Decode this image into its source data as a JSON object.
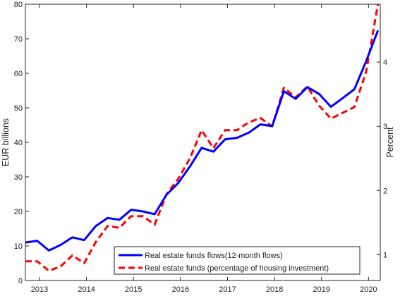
{
  "chart_data": {
    "type": "line",
    "ylabel_left": "EUR billions",
    "ylabel_right": "Percent",
    "xlim": [
      2012.7,
      2020.25
    ],
    "ylim_left": [
      0,
      80
    ],
    "ylim_right": [
      0.6,
      4.9
    ],
    "x_ticks": [
      2013,
      2014,
      2015,
      2016,
      2017,
      2018,
      2019,
      2020
    ],
    "y_ticks_left": [
      0,
      10,
      20,
      30,
      40,
      50,
      60,
      70,
      80
    ],
    "y_ticks_right": [
      1,
      2,
      3,
      4
    ],
    "grid": false,
    "legend_position": "bottom-center",
    "series": [
      {
        "name": "Real estate funds flows(12-month flows)",
        "axis": "left",
        "color": "#0000ff",
        "style": "solid",
        "x": [
          2012.7,
          2012.95,
          2013.2,
          2013.45,
          2013.7,
          2013.95,
          2014.2,
          2014.45,
          2014.7,
          2014.95,
          2015.2,
          2015.45,
          2015.7,
          2015.95,
          2016.2,
          2016.45,
          2016.7,
          2016.95,
          2017.2,
          2017.45,
          2017.7,
          2017.95,
          2018.2,
          2018.45,
          2018.7,
          2018.95,
          2019.2,
          2019.45,
          2019.7,
          2019.95,
          2020.2
        ],
        "values": [
          11,
          11.5,
          8.7,
          10.3,
          12.5,
          11.7,
          15.8,
          18.1,
          17.6,
          20.5,
          20,
          19.2,
          24.8,
          28.2,
          33,
          38.4,
          37.3,
          40.9,
          41.3,
          42.8,
          45.2,
          44.7,
          54.8,
          52.6,
          56,
          54,
          50.3,
          52.8,
          55.4,
          63.5,
          72.4
        ]
      },
      {
        "name": "Real estate funds (percentage of housing investment)",
        "axis": "right",
        "color": "#ff0000",
        "style": "dashed",
        "x": [
          2012.7,
          2012.95,
          2013.2,
          2013.45,
          2013.7,
          2013.95,
          2014.2,
          2014.45,
          2014.7,
          2014.95,
          2015.2,
          2015.45,
          2015.7,
          2015.95,
          2016.2,
          2016.45,
          2016.7,
          2016.95,
          2017.2,
          2017.45,
          2017.7,
          2017.95,
          2018.2,
          2018.45,
          2018.7,
          2018.95,
          2019.2,
          2019.45,
          2019.7,
          2019.95,
          2020.2
        ],
        "values": [
          0.9,
          0.9,
          0.75,
          0.82,
          0.99,
          0.87,
          1.2,
          1.45,
          1.42,
          1.6,
          1.6,
          1.47,
          1.94,
          2.18,
          2.5,
          2.94,
          2.66,
          2.94,
          2.94,
          3.06,
          3.13,
          3.0,
          3.6,
          3.45,
          3.62,
          3.32,
          3.12,
          3.21,
          3.3,
          3.85,
          4.9
        ]
      }
    ]
  }
}
